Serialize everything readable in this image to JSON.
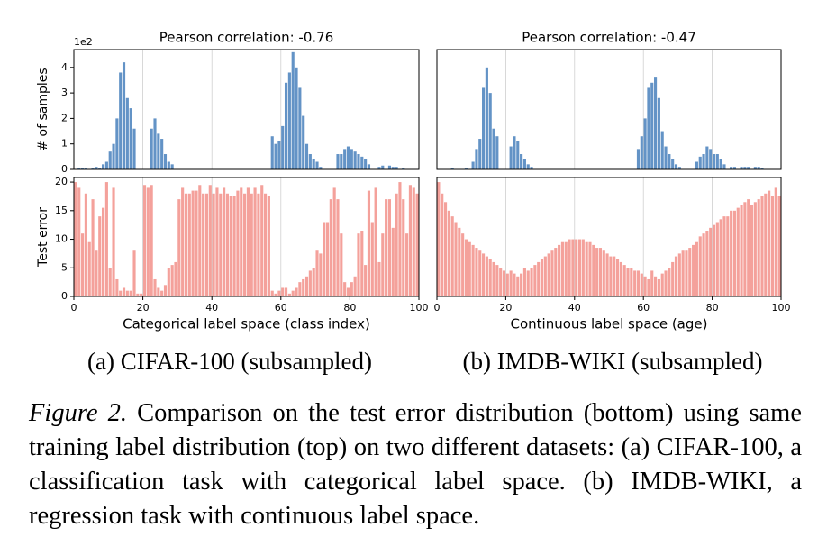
{
  "chart_data": [
    {
      "type": "bar",
      "title": "Pearson correlation: -0.76",
      "xlabel": "Categorical label space (class index)",
      "x": [
        0,
        1,
        2,
        3,
        4,
        5,
        6,
        7,
        8,
        9,
        10,
        11,
        12,
        13,
        14,
        15,
        16,
        17,
        18,
        19,
        20,
        21,
        22,
        23,
        24,
        25,
        26,
        27,
        28,
        29,
        30,
        31,
        32,
        33,
        34,
        35,
        36,
        37,
        38,
        39,
        40,
        41,
        42,
        43,
        44,
        45,
        46,
        47,
        48,
        49,
        50,
        51,
        52,
        53,
        54,
        55,
        56,
        57,
        58,
        59,
        60,
        61,
        62,
        63,
        64,
        65,
        66,
        67,
        68,
        69,
        70,
        71,
        72,
        73,
        74,
        75,
        76,
        77,
        78,
        79,
        80,
        81,
        82,
        83,
        84,
        85,
        86,
        87,
        88,
        89,
        90,
        91,
        92,
        93,
        94,
        95,
        96,
        97,
        98,
        99
      ],
      "xlim": [
        0,
        100
      ],
      "xticks": [
        0,
        20,
        40,
        60,
        80,
        100
      ],
      "grid": true,
      "panels": [
        {
          "ylabel": "# of samples",
          "offset_label": "1e2",
          "color": "#6393c6",
          "ylim": [
            0,
            4.7
          ],
          "yticks": [
            0,
            1,
            2,
            3,
            4
          ],
          "values": [
            0,
            0.05,
            0.05,
            0.05,
            0,
            0.05,
            0.1,
            0.05,
            0.2,
            0.3,
            0.7,
            1.0,
            2.0,
            3.8,
            4.2,
            2.8,
            2.4,
            1.6,
            0,
            0,
            0,
            0,
            1.6,
            2.0,
            1.4,
            1.2,
            0.6,
            0.3,
            0.2,
            0,
            0,
            0,
            0,
            0,
            0,
            0,
            0,
            0,
            0,
            0,
            0,
            0,
            0,
            0,
            0,
            0,
            0,
            0,
            0,
            0,
            0,
            0,
            0,
            0,
            0,
            0,
            0,
            1.3,
            1.0,
            1.1,
            1.7,
            3.4,
            3.8,
            4.6,
            4.0,
            3.2,
            2.1,
            1.0,
            0.6,
            0.4,
            0.3,
            0.1,
            0,
            0,
            0,
            0,
            0.6,
            0.6,
            0.8,
            0.9,
            0.8,
            0.7,
            0.6,
            0.5,
            0.4,
            0.2,
            0,
            0,
            0.1,
            0.15,
            0,
            0.15,
            0.1,
            0.1,
            0,
            0.05,
            0,
            0,
            0,
            0
          ]
        },
        {
          "ylabel": "Test error",
          "color": "#f4a19b",
          "ylim": [
            0,
            20.8
          ],
          "yticks": [
            0,
            5,
            10,
            15,
            20
          ],
          "values": [
            20,
            19,
            11,
            18,
            9.5,
            17,
            8,
            14,
            15.5,
            20,
            5,
            19,
            3,
            1,
            1.5,
            1,
            1,
            8,
            0.5,
            0.5,
            19.5,
            19,
            19.5,
            3,
            1.5,
            1,
            2,
            5,
            5.5,
            6,
            17,
            19,
            18,
            18,
            18.5,
            18.5,
            19.5,
            18,
            18,
            19.5,
            18,
            19,
            18,
            19,
            18,
            17.5,
            17.5,
            18.5,
            19,
            18,
            19,
            18,
            19,
            18,
            19.5,
            18,
            17.5,
            1,
            0.5,
            1,
            1.5,
            1.5,
            0.5,
            1,
            1.5,
            2.5,
            3,
            3.5,
            4.5,
            5,
            8,
            7.5,
            13,
            13,
            17,
            19,
            17,
            11,
            2.5,
            1.5,
            2.5,
            3.5,
            11,
            11.5,
            5.5,
            18.5,
            13,
            19,
            6,
            11,
            17,
            17,
            12,
            18,
            20,
            17,
            11,
            19.5,
            19,
            18
          ]
        }
      ]
    },
    {
      "type": "bar",
      "title": "Pearson correlation: -0.47",
      "xlabel": "Continuous label space (age)",
      "x": [
        0,
        1,
        2,
        3,
        4,
        5,
        6,
        7,
        8,
        9,
        10,
        11,
        12,
        13,
        14,
        15,
        16,
        17,
        18,
        19,
        20,
        21,
        22,
        23,
        24,
        25,
        26,
        27,
        28,
        29,
        30,
        31,
        32,
        33,
        34,
        35,
        36,
        37,
        38,
        39,
        40,
        41,
        42,
        43,
        44,
        45,
        46,
        47,
        48,
        49,
        50,
        51,
        52,
        53,
        54,
        55,
        56,
        57,
        58,
        59,
        60,
        61,
        62,
        63,
        64,
        65,
        66,
        67,
        68,
        69,
        70,
        71,
        72,
        73,
        74,
        75,
        76,
        77,
        78,
        79,
        80,
        81,
        82,
        83,
        84,
        85,
        86,
        87,
        88,
        89,
        90,
        91,
        92,
        93,
        94,
        95,
        96,
        97,
        98,
        99
      ],
      "xlim": [
        0,
        100
      ],
      "xticks": [
        0,
        20,
        40,
        60,
        80,
        100
      ],
      "grid": true,
      "panels": [
        {
          "color": "#6393c6",
          "ylim": [
            0,
            4.7
          ],
          "values": [
            0,
            0,
            0,
            0,
            0.05,
            0,
            0,
            0,
            0.05,
            0,
            0.3,
            0.8,
            1.2,
            3.2,
            4.0,
            3.0,
            1.6,
            1.3,
            0,
            0,
            0,
            0.9,
            1.3,
            1.1,
            0.6,
            0.4,
            0.2,
            0.1,
            0,
            0,
            0,
            0,
            0,
            0,
            0,
            0,
            0,
            0,
            0,
            0,
            0,
            0,
            0,
            0,
            0,
            0,
            0,
            0,
            0,
            0,
            0,
            0,
            0,
            0,
            0,
            0,
            0,
            0,
            0.8,
            1.3,
            2.0,
            3.2,
            3.4,
            3.6,
            2.8,
            1.5,
            0.9,
            0.6,
            0.4,
            0.2,
            0.1,
            0,
            0,
            0,
            0,
            0.3,
            0.5,
            0.6,
            0.9,
            0.8,
            0.6,
            0.6,
            0.4,
            0.2,
            0,
            0.1,
            0.1,
            0,
            0.1,
            0.1,
            0.1,
            0,
            0.1,
            0.1,
            0.05,
            0,
            0,
            0,
            0,
            0
          ]
        },
        {
          "color": "#f4a19b",
          "ylim": [
            0,
            20.8
          ],
          "values": [
            20,
            18,
            16.5,
            15,
            14,
            13,
            12,
            11,
            10,
            9.5,
            9,
            8.5,
            8,
            7.5,
            7,
            6.5,
            6,
            5.5,
            5,
            4.5,
            4,
            4.5,
            4,
            3.5,
            4,
            5,
            4.5,
            5,
            5.5,
            6,
            6.5,
            7,
            7.5,
            8,
            8.5,
            9,
            9.5,
            9.5,
            10,
            10,
            10,
            10,
            10,
            9.5,
            9.5,
            9,
            8.5,
            8.5,
            8,
            7.5,
            7,
            7,
            6.5,
            6,
            5.5,
            5,
            5,
            4.5,
            4.5,
            4,
            3.5,
            3,
            4.5,
            3.5,
            3,
            4,
            4.5,
            5,
            6,
            7,
            7.5,
            8,
            8,
            8.5,
            9,
            9.5,
            10.5,
            11,
            11.5,
            12,
            12.5,
            13,
            13.5,
            14,
            14,
            15,
            15,
            15.5,
            16,
            16.5,
            17,
            16,
            16.5,
            17,
            17.5,
            18,
            18.5,
            17.5,
            19,
            17.5
          ]
        }
      ]
    }
  ],
  "subcaptions": [
    "(a) CIFAR-100 (subsampled)",
    "(b) IMDB-WIKI (subsampled)"
  ],
  "caption": {
    "label": "Figure 2.",
    "text": "Comparison on the test error distribution (bottom) using same training label distribution (top) on two different datasets: (a) CIFAR-100, a classification task with categorical label space. (b) IMDB-WIKI, a regression task with continuous label space."
  }
}
